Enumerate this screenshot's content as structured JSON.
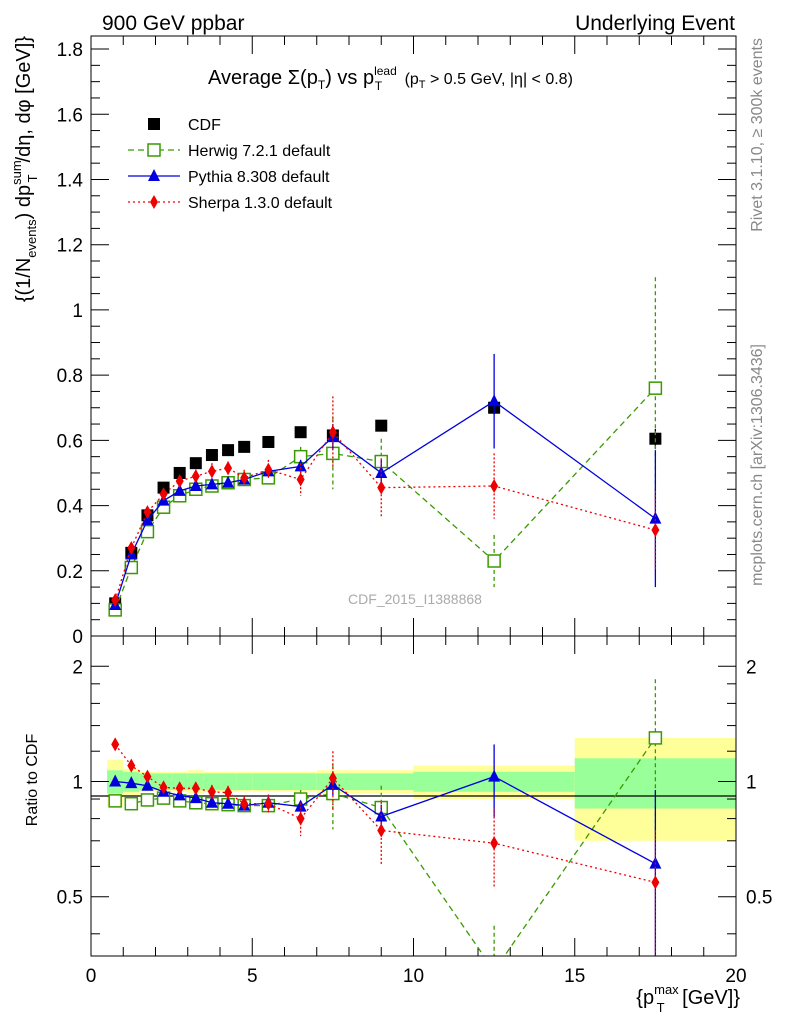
{
  "header": {
    "left": "900 GeV ppbar",
    "right": "Underlying Event"
  },
  "side_labels": {
    "top": "Rivet 3.1.10, ≥ 300k events",
    "bottom": "mcplots.cern.ch [arXiv:1306.3436]"
  },
  "watermark": "CDF_2015_I1388868",
  "chart_data": [
    {
      "type": "scatter",
      "title": "Average Σ(pT) vs pT lead (pT > 0.5 GeV, |η| < 0.8)",
      "ylabel": "{(1/N_events) dp_T^sum/dη, dφ [GeV]}",
      "xlim": [
        0,
        20
      ],
      "ylim": [
        0,
        1.84
      ],
      "yticks": [
        0,
        0.2,
        0.4,
        0.6,
        0.8,
        1,
        1.2,
        1.4,
        1.6,
        1.8
      ],
      "ytick_labels": [
        "0",
        "0.2",
        "0.4",
        "0.6",
        "0.8",
        "1",
        "1.2",
        "1.4",
        "1.6",
        "1.8"
      ],
      "legend_position": "top-left",
      "series": [
        {
          "name": "CDF",
          "color": "#000000",
          "marker": "square-filled",
          "x": [
            0.75,
            1.25,
            1.75,
            2.25,
            2.75,
            3.25,
            3.75,
            4.25,
            4.75,
            5.5,
            6.5,
            7.5,
            9.0,
            12.5,
            17.5
          ],
          "y": [
            0.1,
            0.255,
            0.37,
            0.455,
            0.5,
            0.53,
            0.555,
            0.57,
            0.58,
            0.595,
            0.625,
            0.615,
            0.645,
            0.7,
            0.605
          ],
          "err": [
            0.01,
            0.01,
            0.01,
            0.01,
            0.01,
            0.01,
            0.01,
            0.01,
            0.01,
            0.01,
            0.012,
            0.012,
            0.015,
            0.02,
            0.03
          ]
        },
        {
          "name": "Herwig 7.2.1 default",
          "color": "#3a9a00",
          "marker": "square-open",
          "line": "dashed",
          "x": [
            0.75,
            1.25,
            1.75,
            2.25,
            2.75,
            3.25,
            3.75,
            4.25,
            4.75,
            5.5,
            6.5,
            7.5,
            9.0,
            12.5,
            17.5
          ],
          "y": [
            0.08,
            0.21,
            0.32,
            0.395,
            0.43,
            0.45,
            0.46,
            0.47,
            0.48,
            0.485,
            0.55,
            0.56,
            0.535,
            0.23,
            0.76
          ],
          "err": [
            0.005,
            0.01,
            0.01,
            0.01,
            0.01,
            0.01,
            0.012,
            0.012,
            0.015,
            0.02,
            0.03,
            0.11,
            0.07,
            0.08,
            0.34
          ]
        },
        {
          "name": "Pythia 8.308 default",
          "color": "#0000dd",
          "marker": "triangle-filled",
          "line": "solid",
          "x": [
            0.75,
            1.25,
            1.75,
            2.25,
            2.75,
            3.25,
            3.75,
            4.25,
            4.75,
            5.5,
            6.5,
            7.5,
            9.0,
            12.5,
            17.5
          ],
          "y": [
            0.095,
            0.25,
            0.355,
            0.415,
            0.445,
            0.46,
            0.465,
            0.47,
            0.48,
            0.505,
            0.52,
            0.61,
            0.5,
            0.72,
            0.36
          ],
          "err": [
            0.005,
            0.008,
            0.01,
            0.01,
            0.01,
            0.01,
            0.01,
            0.01,
            0.012,
            0.015,
            0.02,
            0.04,
            0.04,
            0.145,
            0.21
          ]
        },
        {
          "name": "Sherpa 1.3.0 default",
          "color": "#ee0000",
          "marker": "diamond-filled",
          "line": "dotted",
          "x": [
            0.75,
            1.25,
            1.75,
            2.25,
            2.75,
            3.25,
            3.75,
            4.25,
            4.75,
            5.5,
            6.5,
            7.5,
            9.0,
            12.5,
            17.5
          ],
          "y": [
            0.11,
            0.27,
            0.38,
            0.435,
            0.475,
            0.49,
            0.505,
            0.515,
            0.485,
            0.51,
            0.48,
            0.625,
            0.455,
            0.46,
            0.325
          ],
          "err": [
            0.005,
            0.01,
            0.01,
            0.012,
            0.015,
            0.02,
            0.025,
            0.02,
            0.025,
            0.03,
            0.05,
            0.11,
            0.09,
            0.1,
            0.12
          ]
        }
      ]
    },
    {
      "type": "scatter",
      "ylabel": "Ratio to CDF",
      "xlabel": "{p_T^max [GeV]}",
      "xlim": [
        0,
        20
      ],
      "ylim": [
        0.35,
        2.4
      ],
      "yscale": "log",
      "xticks": [
        0,
        5,
        10,
        15,
        20
      ],
      "xtick_labels": [
        "0",
        "5",
        "10",
        "15",
        "20"
      ],
      "yticks": [
        0.5,
        1,
        2
      ],
      "ytick_labels": [
        "0.5",
        "1",
        "2"
      ],
      "uncertainty_bands": {
        "edges": [
          0.5,
          1.0,
          1.5,
          2.0,
          2.5,
          3.0,
          3.5,
          4.0,
          4.5,
          5.0,
          6.0,
          7.0,
          8.0,
          10.0,
          15.0,
          20.0
        ],
        "stat": [
          0.07,
          0.06,
          0.05,
          0.05,
          0.05,
          0.05,
          0.05,
          0.05,
          0.05,
          0.05,
          0.05,
          0.05,
          0.05,
          0.06,
          0.15
        ],
        "total": [
          0.14,
          0.08,
          0.06,
          0.06,
          0.06,
          0.07,
          0.06,
          0.06,
          0.06,
          0.06,
          0.06,
          0.07,
          0.07,
          0.1,
          0.3
        ],
        "stat_color": "#99ff99",
        "total_color": "#ffff99"
      },
      "series": [
        {
          "name": "Herwig 7.2.1 default",
          "color": "#3a9a00",
          "x": [
            0.75,
            1.25,
            1.75,
            2.25,
            2.75,
            3.25,
            3.75,
            4.25,
            4.75,
            5.5,
            6.5,
            7.5,
            9.0,
            12.5,
            17.5
          ],
          "y": [
            0.89,
            0.875,
            0.895,
            0.905,
            0.89,
            0.88,
            0.875,
            0.87,
            0.865,
            0.865,
            0.9,
            0.93,
            0.855,
            0.32,
            1.3
          ],
          "err": [
            0.02,
            0.02,
            0.02,
            0.02,
            0.02,
            0.02,
            0.02,
            0.02,
            0.02,
            0.03,
            0.05,
            0.18,
            0.12,
            0.1,
            0.55
          ]
        },
        {
          "name": "Pythia 8.308 default",
          "color": "#0000dd",
          "x": [
            0.75,
            1.25,
            1.75,
            2.25,
            2.75,
            3.25,
            3.75,
            4.25,
            4.75,
            5.5,
            6.5,
            7.5,
            9.0,
            12.5,
            17.5
          ],
          "y": [
            1.0,
            0.99,
            0.975,
            0.94,
            0.92,
            0.905,
            0.88,
            0.875,
            0.865,
            0.88,
            0.86,
            0.98,
            0.81,
            1.03,
            0.61
          ],
          "err": [
            0.015,
            0.015,
            0.015,
            0.015,
            0.015,
            0.015,
            0.015,
            0.015,
            0.015,
            0.02,
            0.03,
            0.06,
            0.06,
            0.22,
            0.34
          ]
        },
        {
          "name": "Sherpa 1.3.0 default",
          "color": "#ee0000",
          "x": [
            0.75,
            1.25,
            1.75,
            2.25,
            2.75,
            3.25,
            3.75,
            4.25,
            4.75,
            5.5,
            6.5,
            7.5,
            9.0,
            12.5,
            17.5
          ],
          "y": [
            1.25,
            1.1,
            1.03,
            0.965,
            0.96,
            0.96,
            0.94,
            0.935,
            0.875,
            0.875,
            0.8,
            1.02,
            0.745,
            0.69,
            0.545
          ],
          "err": [
            0.02,
            0.03,
            0.03,
            0.03,
            0.03,
            0.035,
            0.04,
            0.04,
            0.04,
            0.05,
            0.08,
            0.18,
            0.14,
            0.16,
            0.2
          ]
        }
      ]
    }
  ]
}
